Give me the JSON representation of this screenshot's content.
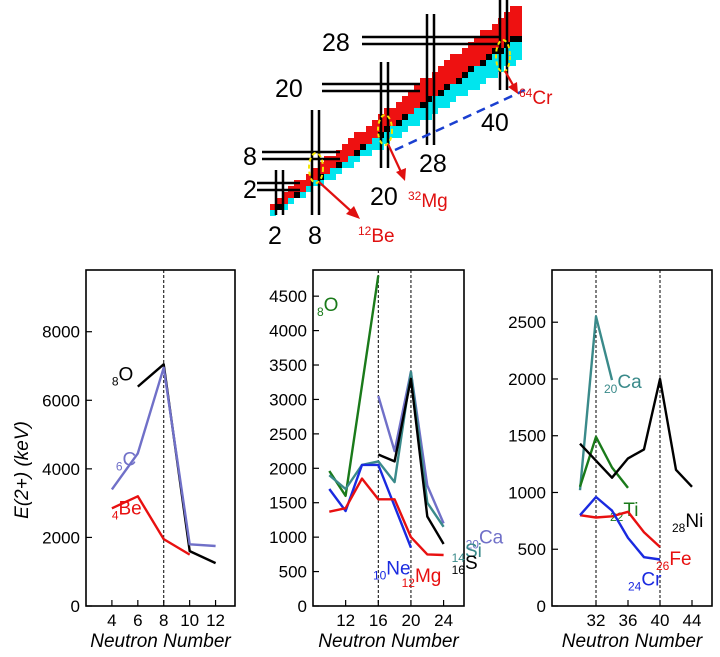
{
  "nuclide_chart": {
    "magic_labels_left": [
      "28",
      "20",
      "8",
      "2"
    ],
    "magic_labels_bottom": [
      "2",
      "8",
      "20",
      "28",
      "40"
    ],
    "nuclei": [
      {
        "mass": "12",
        "symbol": "Be"
      },
      {
        "mass": "32",
        "symbol": "Mg"
      },
      {
        "mass": "64",
        "symbol": "Cr"
      }
    ],
    "colors": {
      "stable_region": "#ee1111",
      "neutron_rich_region": "#00e5ee",
      "marker": "#f5e600",
      "dashed_line": "#1a3fd0",
      "arrow": "#e01010"
    }
  },
  "chart_data": [
    {
      "type": "line",
      "ylabel": "E(2+) (keV)",
      "xlabel": "Neutron Number",
      "ylim": [
        0,
        9800
      ],
      "xlim": [
        2,
        13.5
      ],
      "xticks": [
        4,
        6,
        8,
        10,
        12
      ],
      "yticks": [
        0,
        2000,
        4000,
        6000,
        8000
      ],
      "vlines": [
        8
      ],
      "series": [
        {
          "name": "O",
          "z": "8",
          "color": "#000000",
          "x": [
            6,
            8,
            10,
            12
          ],
          "y": [
            6400,
            7050,
            1600,
            1250
          ]
        },
        {
          "name": "C",
          "z": "6",
          "color": "#7070c8",
          "x": [
            4,
            6,
            8,
            10,
            12
          ],
          "y": [
            3400,
            4450,
            6950,
            1800,
            1750
          ]
        },
        {
          "name": "Be",
          "z": "4",
          "color": "#e81010",
          "x": [
            4,
            6,
            8,
            10
          ],
          "y": [
            2850,
            3200,
            1950,
            1500
          ]
        }
      ]
    },
    {
      "type": "line",
      "ylabel": "",
      "xlabel": "Neutron Number",
      "ylim": [
        0,
        4880
      ],
      "xlim": [
        8,
        26.5
      ],
      "xticks": [
        12,
        16,
        20,
        24
      ],
      "yticks": [
        0,
        500,
        1000,
        1500,
        2000,
        2500,
        3000,
        3500,
        4000,
        4500
      ],
      "vlines": [
        16,
        20
      ],
      "series": [
        {
          "name": "O",
          "z": "8",
          "color": "#1a7a1a",
          "x": [
            10,
            12,
            16
          ],
          "y": [
            1960,
            1600,
            4800
          ]
        },
        {
          "name": "Ca",
          "z": "20",
          "color": "#7070c8",
          "x": [
            16,
            18,
            20,
            22,
            24
          ],
          "y": [
            3050,
            2250,
            3400,
            1750,
            1200
          ]
        },
        {
          "name": "Si",
          "z": "14",
          "color": "#3a8a8a",
          "x": [
            10,
            12,
            14,
            16,
            18,
            20,
            22,
            24
          ],
          "y": [
            1900,
            1700,
            2050,
            2100,
            1800,
            3400,
            1500,
            1150
          ]
        },
        {
          "name": "S",
          "z": "16",
          "color": "#000000",
          "x": [
            16,
            18,
            20,
            22,
            24
          ],
          "y": [
            2200,
            2100,
            3300,
            1300,
            900
          ]
        },
        {
          "name": "Ne",
          "z": "10",
          "color": "#1a2ae0",
          "x": [
            10,
            12,
            14,
            16,
            18,
            20
          ],
          "y": [
            1700,
            1380,
            2050,
            2050,
            1450,
            850
          ]
        },
        {
          "name": "Mg",
          "z": "12",
          "color": "#e81010",
          "x": [
            10,
            12,
            14,
            16,
            18,
            20,
            22,
            24
          ],
          "y": [
            1370,
            1420,
            1850,
            1550,
            1550,
            1000,
            750,
            740
          ]
        }
      ]
    },
    {
      "type": "line",
      "ylabel": "",
      "xlabel": "Neutron Number",
      "ylim": [
        0,
        2960
      ],
      "xlim": [
        26.5,
        46.5
      ],
      "xticks": [
        32,
        36,
        40,
        44
      ],
      "yticks": [
        0,
        500,
        1000,
        1500,
        2000,
        2500
      ],
      "vlines": [
        32,
        40
      ],
      "series": [
        {
          "name": "Ca",
          "z": "20",
          "color": "#3a8a8a",
          "x": [
            30,
            32,
            34
          ],
          "y": [
            1020,
            2550,
            1990
          ]
        },
        {
          "name": "Ti",
          "z": "22",
          "color": "#1a7a1a",
          "x": [
            30,
            32,
            34,
            36
          ],
          "y": [
            1050,
            1490,
            1220,
            1040
          ]
        },
        {
          "name": "Ni",
          "z": "28",
          "color": "#000000",
          "x": [
            30,
            32,
            34,
            36,
            38,
            40,
            42,
            44
          ],
          "y": [
            1430,
            1280,
            1130,
            1300,
            1380,
            2000,
            1200,
            1050
          ]
        },
        {
          "name": "Fe",
          "z": "26",
          "color": "#e81010",
          "x": [
            30,
            32,
            34,
            36,
            38,
            40
          ],
          "y": [
            800,
            780,
            790,
            830,
            650,
            520
          ]
        },
        {
          "name": "Cr",
          "z": "24",
          "color": "#1a2ae0",
          "x": [
            30,
            32,
            34,
            36,
            38,
            40
          ],
          "y": [
            800,
            960,
            840,
            600,
            430,
            410
          ]
        }
      ]
    }
  ]
}
